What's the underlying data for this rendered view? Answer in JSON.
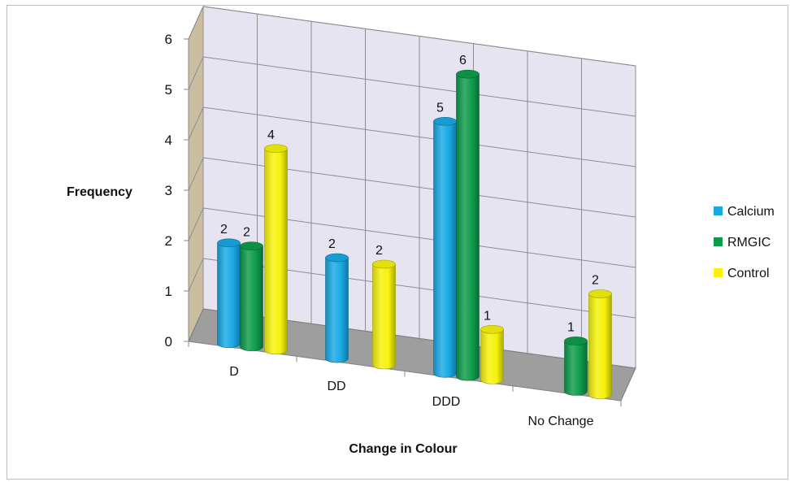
{
  "chart_data": {
    "type": "bar",
    "title": "",
    "xlabel": "Change in Colour",
    "ylabel": "Frequency",
    "ylim": [
      0,
      6
    ],
    "yticks": [
      "0",
      "1",
      "2",
      "3",
      "4",
      "5",
      "6"
    ],
    "categories": [
      "D",
      "DD",
      "DDD",
      "No Change"
    ],
    "series": [
      {
        "name": "Calcium",
        "color": "#18A8E4",
        "values": [
          2,
          2,
          5,
          0
        ]
      },
      {
        "name": "RMGIC",
        "color": "#0E9B4A",
        "values": [
          2,
          0,
          6,
          1
        ]
      },
      {
        "name": "Control",
        "color": "#F6F20A",
        "values": [
          4,
          2,
          1,
          2
        ]
      }
    ],
    "data_labels": [
      [
        "2",
        "2",
        "4"
      ],
      [
        "2",
        "",
        "2"
      ],
      [
        "5",
        "6",
        "1"
      ],
      [
        "",
        "1",
        "2"
      ]
    ],
    "grid": true,
    "style": "3d-cylinder",
    "legend_position": "right"
  }
}
